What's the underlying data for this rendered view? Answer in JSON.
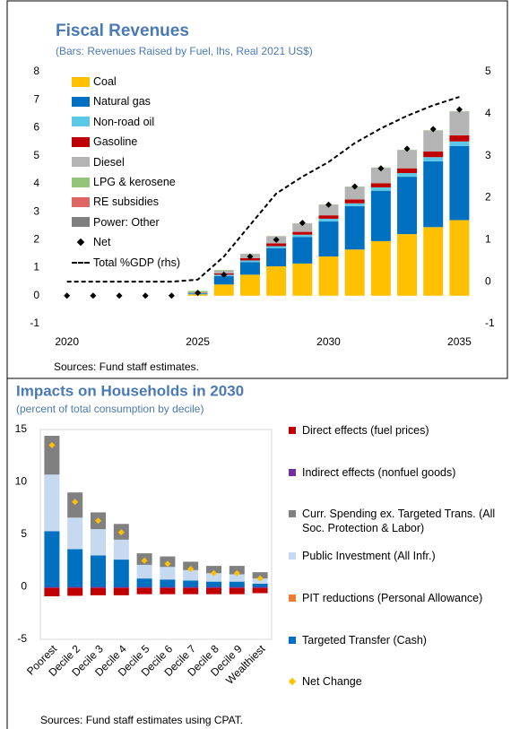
{
  "chart_data": [
    {
      "type": "bar",
      "stacked": true,
      "title": "Fiscal Revenues",
      "subtitle": "(Bars: Revenues Raised by Fuel, lhs, Real 2021 US$)",
      "x": [
        2020,
        2021,
        2022,
        2023,
        2024,
        2025,
        2026,
        2027,
        2028,
        2029,
        2030,
        2031,
        2032,
        2033,
        2034,
        2035
      ],
      "xlim": [
        2019.6,
        2035.5
      ],
      "xticks": [
        2020,
        2025,
        2030,
        2035
      ],
      "ylim": [
        -1,
        8
      ],
      "yticks": [
        -1,
        0,
        1,
        2,
        3,
        4,
        5,
        6,
        7,
        8
      ],
      "y2lim": [
        -1,
        5
      ],
      "y2ticks": [
        -1,
        0,
        1,
        2,
        3,
        4,
        5
      ],
      "series": [
        {
          "name": "Coal",
          "color": "#ffc000",
          "values": [
            0,
            0,
            0,
            0,
            0,
            0.05,
            0.4,
            0.75,
            1.05,
            1.15,
            1.4,
            1.65,
            1.95,
            2.2,
            2.45,
            2.7
          ]
        },
        {
          "name": "Natural gas",
          "color": "#0070c0",
          "values": [
            0,
            0,
            0,
            0,
            0,
            0.03,
            0.3,
            0.45,
            0.65,
            0.95,
            1.25,
            1.55,
            1.8,
            2.05,
            2.35,
            2.65
          ]
        },
        {
          "name": "Non-road oil",
          "color": "#5bc8e8",
          "values": [
            0,
            0,
            0,
            0,
            0,
            0.01,
            0.05,
            0.06,
            0.07,
            0.08,
            0.1,
            0.1,
            0.12,
            0.13,
            0.15,
            0.16
          ]
        },
        {
          "name": "Gasoline",
          "color": "#c00000",
          "values": [
            0,
            0,
            0,
            0,
            0,
            0.01,
            0.05,
            0.08,
            0.1,
            0.1,
            0.12,
            0.14,
            0.15,
            0.17,
            0.2,
            0.22
          ]
        },
        {
          "name": "Diesel",
          "color": "#b4b4b4",
          "values": [
            0,
            0,
            0,
            0,
            0,
            0.02,
            0.1,
            0.15,
            0.25,
            0.3,
            0.38,
            0.45,
            0.55,
            0.65,
            0.75,
            0.85
          ]
        },
        {
          "name": "LPG & kerosene",
          "color": "#92c47a",
          "values": [
            0,
            0,
            0,
            0,
            0,
            0.05,
            0.02,
            0.01,
            0.01,
            0.01,
            0.01,
            0.01,
            0.01,
            0.01,
            0.01,
            0.01
          ]
        },
        {
          "name": "RE subsidies",
          "color": "#e06666",
          "values": [
            0,
            0,
            0,
            0,
            0,
            0,
            0,
            0,
            0,
            0,
            0,
            0,
            0,
            0,
            0,
            0
          ]
        },
        {
          "name": "Power: Other",
          "color": "#7f7f7f",
          "values": [
            0,
            0,
            0,
            0,
            0,
            0,
            0,
            0,
            0,
            0,
            0,
            0,
            0,
            0,
            0,
            0
          ]
        },
        {
          "name": "Net",
          "type": "scatter",
          "color": "#000000",
          "values": [
            0,
            0,
            0,
            0,
            0,
            0.1,
            0.75,
            1.4,
            2.0,
            2.6,
            3.25,
            3.9,
            4.55,
            5.25,
            5.95,
            6.65
          ]
        },
        {
          "name": "Total %GDP (rhs)",
          "type": "line",
          "axis": "y2",
          "color": "#000000",
          "values": [
            0,
            0,
            0,
            0,
            0,
            0.05,
            0.6,
            1.35,
            2.1,
            2.5,
            2.85,
            3.3,
            3.65,
            3.95,
            4.2,
            4.4
          ]
        }
      ],
      "note": "Sources: Fund staff estimates."
    },
    {
      "type": "bar",
      "stacked": true,
      "stack_order": "reverse",
      "title": "Impacts on Households in 2030",
      "subtitle": "(percent of total consumption by decile)",
      "categories": [
        "Poorest",
        "Decile 2",
        "Decile 3",
        "Decile 4",
        "Decile 5",
        "Decile 6",
        "Decile 7",
        "Decile 8",
        "Decile 9",
        "Wealthiest"
      ],
      "ylim": [
        -5,
        15
      ],
      "yticks": [
        -5,
        0,
        5,
        10,
        15
      ],
      "series": [
        {
          "name": "Direct effects (fuel prices)",
          "color": "#c00000",
          "values": [
            -0.8,
            -0.75,
            -0.7,
            -0.7,
            -0.6,
            -0.6,
            -0.6,
            -0.6,
            -0.6,
            -0.5
          ]
        },
        {
          "name": "Indirect effects (nonfuel goods)",
          "color": "#7030a0",
          "values": [
            -0.1,
            -0.1,
            -0.1,
            -0.1,
            -0.1,
            -0.1,
            -0.1,
            -0.1,
            -0.1,
            -0.1
          ]
        },
        {
          "name": "Curr. Spending ex. Targeted Trans. (All Soc. Protection & Labor)",
          "color": "#808080",
          "values": [
            3.7,
            2.4,
            1.6,
            1.5,
            1.1,
            1.0,
            0.8,
            0.7,
            0.8,
            0.6
          ]
        },
        {
          "name": "Public Investment (All Infr.)",
          "color": "#c5d9f1",
          "values": [
            5.4,
            3.0,
            2.5,
            1.9,
            1.3,
            1.2,
            1.0,
            0.8,
            0.7,
            0.5
          ]
        },
        {
          "name": "PIT reductions (Personal Allowance)",
          "color": "#ed7d31",
          "values": [
            0,
            0,
            0,
            0,
            0,
            0,
            0,
            0,
            0,
            0
          ]
        },
        {
          "name": "Targeted Transfer (Cash)",
          "color": "#0070c0",
          "values": [
            5.3,
            3.6,
            3.0,
            2.6,
            0.8,
            0.7,
            0.6,
            0.5,
            0.5,
            0.3
          ]
        },
        {
          "name": "Net Change",
          "type": "scatter",
          "color": "#ffc000",
          "values": [
            13.5,
            8.1,
            6.3,
            5.2,
            2.5,
            2.2,
            1.7,
            1.3,
            1.3,
            0.8
          ]
        }
      ],
      "note": "Sources: Fund staff estimates using CPAT."
    }
  ]
}
